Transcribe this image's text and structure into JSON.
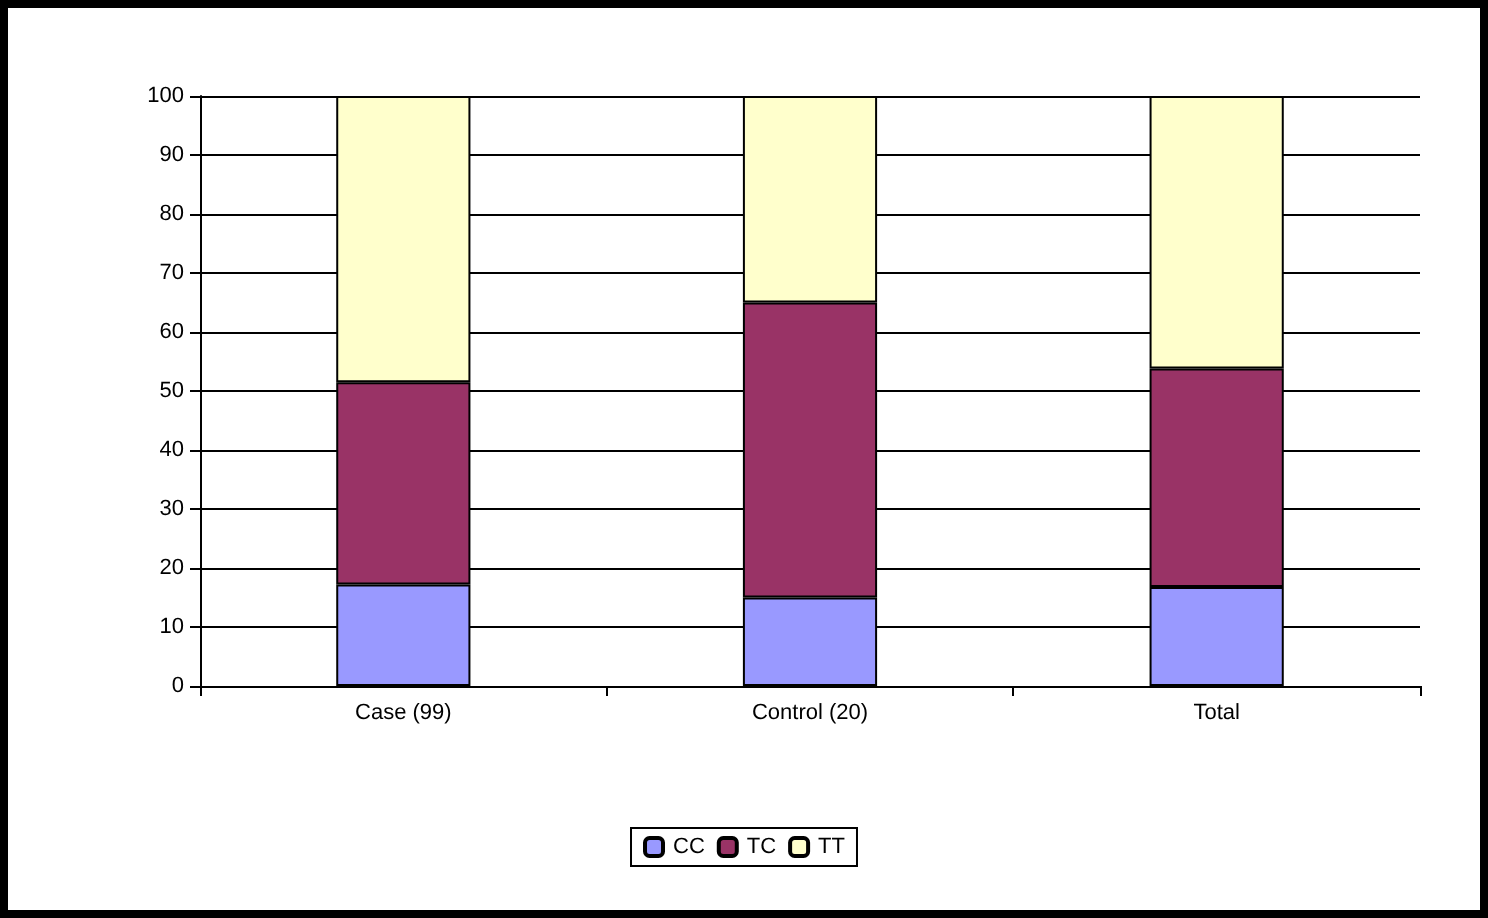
{
  "chart_data": {
    "type": "bar",
    "stacked": true,
    "categories": [
      "Case (99)",
      "Control (20)",
      "Total"
    ],
    "series": [
      {
        "name": "CC",
        "color": "#9999ff",
        "values": [
          17.2,
          15,
          16.8
        ]
      },
      {
        "name": "TC",
        "color": "#993366",
        "values": [
          34.3,
          50,
          37
        ]
      },
      {
        "name": "TT",
        "color": "#ffffcc",
        "values": [
          48.5,
          35,
          46.2
        ]
      }
    ],
    "ylim": [
      0,
      100
    ],
    "yticks": [
      0,
      10,
      20,
      30,
      40,
      50,
      60,
      70,
      80,
      90,
      100
    ],
    "grid": "y",
    "legend": "bottom"
  }
}
